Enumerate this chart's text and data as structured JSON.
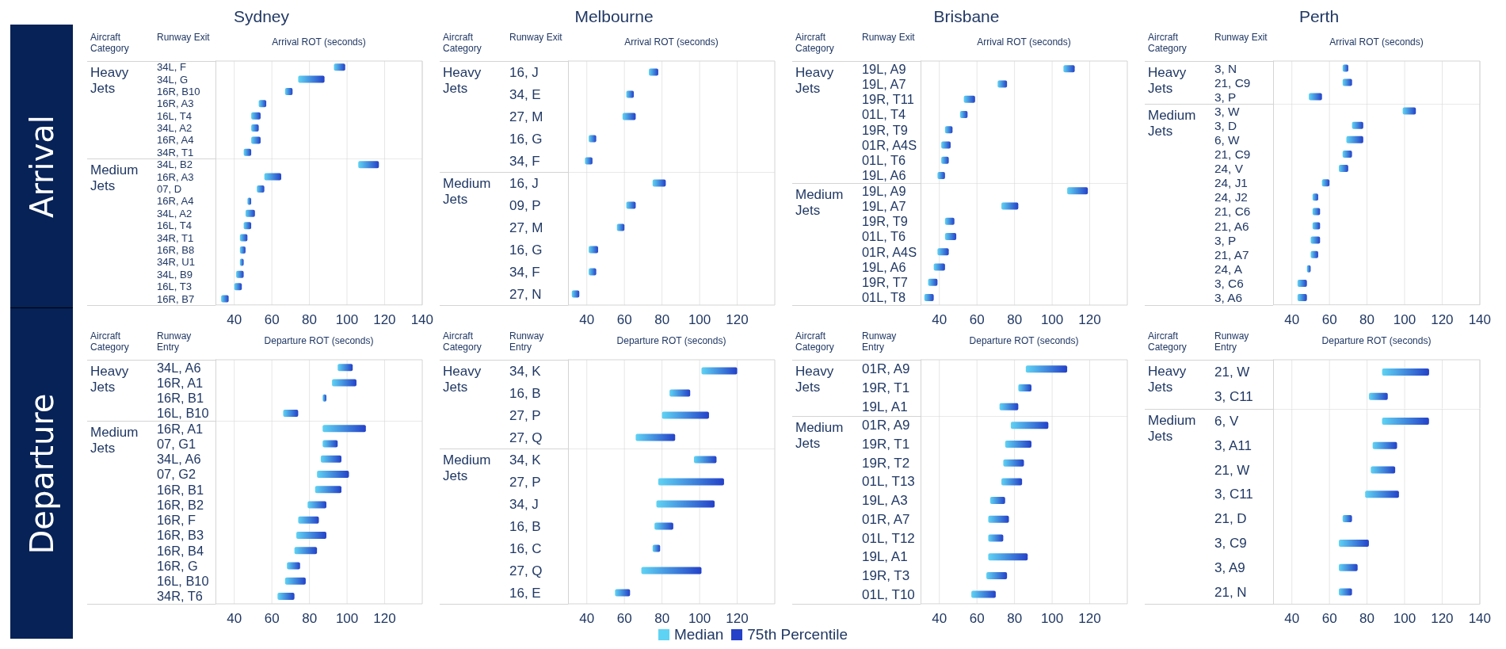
{
  "chart_data": [
    {
      "type": "bar",
      "orientation": "horizontal",
      "title": "Sydney",
      "xlabel": "Arrival ROT (seconds)",
      "ylabel": "Runway Exit",
      "annotations": [
        "Heavy Jets",
        "Aircraft Category",
        "Arrival"
      ],
      "categories": [
        "34L, F",
        "34L, G",
        "16R, B10",
        "16R, A3",
        "16L, T4",
        "34L, A2",
        "16R, A4",
        "34R, T1"
      ],
      "base": [
        93,
        74,
        67,
        53,
        49,
        49,
        49,
        45
      ],
      "values": [
        6,
        14,
        4,
        4,
        5,
        4,
        5,
        4
      ],
      "color": "#2441c8",
      "xlim": [
        30,
        140
      ],
      "xticks": [
        40,
        60,
        80,
        100,
        120,
        140
      ],
      "grid": "x",
      "tick_labels": "y"
    },
    {
      "type": "bar",
      "orientation": "horizontal",
      "annotations": [
        "Medium Jets"
      ],
      "categories": [
        "34L, B2",
        "16R, A3",
        "07, D",
        "16R, A4",
        "34L, A2",
        "16L, T4",
        "34R, T1",
        "16R, B8",
        "34R, U1",
        "34L, B9",
        "16L, T3",
        "16R, B7"
      ],
      "base": [
        106,
        56,
        52,
        47,
        46,
        45,
        43,
        43,
        43,
        41,
        40,
        33
      ],
      "values": [
        11,
        9,
        4,
        2,
        5,
        4,
        4,
        3,
        2,
        4,
        4,
        4
      ],
      "color": "#2441c8",
      "xlim": [
        30,
        140
      ],
      "xticks": [
        40,
        60,
        80,
        100,
        120,
        140
      ],
      "grid": "x"
    },
    {
      "type": "bar",
      "orientation": "horizontal",
      "title": "Melbourne",
      "xlabel": "Arrival ROT (seconds)",
      "ylabel": "Runway Exit",
      "annotations": [
        "Heavy Jets",
        "Aircraft Category"
      ],
      "categories": [
        "16, J",
        "34, E",
        "27, M",
        "16, G",
        "34, F"
      ],
      "base": [
        73,
        61,
        59,
        41,
        39
      ],
      "values": [
        5,
        4,
        7,
        4,
        4
      ],
      "color": "#2441c8",
      "xlim": [
        30,
        140
      ],
      "xticks": [
        40,
        60,
        80,
        100,
        120
      ],
      "grid": "x",
      "tick_labels": "y"
    },
    {
      "type": "bar",
      "orientation": "horizontal",
      "annotations": [
        "Medium Jets"
      ],
      "categories": [
        "16, J",
        "09, P",
        "27, M",
        "16, G",
        "34, F",
        "27, N"
      ],
      "base": [
        75,
        61,
        56,
        41,
        41,
        32
      ],
      "values": [
        7,
        5,
        4,
        5,
        4,
        4
      ],
      "color": "#2441c8",
      "xlim": [
        30,
        140
      ],
      "xticks": [
        40,
        60,
        80,
        100,
        120
      ],
      "grid": "x"
    },
    {
      "type": "bar",
      "orientation": "horizontal",
      "title": "Brisbane",
      "xlabel": "Arrival ROT (seconds)",
      "ylabel": "Runway Exit",
      "annotations": [
        "Heavy Jets",
        "Aircraft Category"
      ],
      "categories": [
        "19L, A9",
        "19L, A7",
        "19R, T11",
        "01L, T4",
        "19R, T9",
        "01R, A4S",
        "01L, T6",
        "19L, A6"
      ],
      "base": [
        106,
        71,
        53,
        51,
        43,
        41,
        41,
        39
      ],
      "values": [
        6,
        5,
        6,
        4,
        4,
        5,
        4,
        4
      ],
      "color": "#2441c8",
      "xlim": [
        30,
        140
      ],
      "xticks": [
        40,
        60,
        80,
        100,
        120
      ],
      "grid": "x",
      "tick_labels": "y"
    },
    {
      "type": "bar",
      "orientation": "horizontal",
      "annotations": [
        "Medium Jets"
      ],
      "categories": [
        "19L, A9",
        "19L, A7",
        "19R, T9",
        "01L, T6",
        "01R, A4S",
        "19L, A6",
        "19R, T7",
        "01L, T8"
      ],
      "base": [
        108,
        73,
        43,
        43,
        39,
        37,
        34,
        32
      ],
      "values": [
        11,
        9,
        5,
        6,
        6,
        6,
        5,
        5
      ],
      "color": "#2441c8",
      "xlim": [
        30,
        140
      ],
      "xticks": [
        40,
        60,
        80,
        100,
        120
      ],
      "grid": "x"
    },
    {
      "type": "bar",
      "orientation": "horizontal",
      "title": "Perth",
      "xlabel": "Arrival ROT (seconds)",
      "ylabel": "Runway Exit",
      "annotations": [
        "Heavy Jets",
        "Aircraft Category"
      ],
      "categories": [
        "3, N",
        "21, C9",
        "3, P"
      ],
      "base": [
        67,
        67,
        49
      ],
      "values": [
        3,
        5,
        7
      ],
      "color": "#2441c8",
      "xlim": [
        30,
        140
      ],
      "xticks": [
        40,
        60,
        80,
        100,
        120,
        140
      ],
      "grid": "x",
      "tick_labels": "y"
    },
    {
      "type": "bar",
      "orientation": "horizontal",
      "annotations": [
        "Medium Jets"
      ],
      "categories": [
        "3, W",
        "3, D",
        "6, W",
        "21, C9",
        "24, V",
        "24, J1",
        "24, J2",
        "21, C6",
        "21, A6",
        "3, P",
        "21, A7",
        "24, A",
        "3, C6",
        "3, A6"
      ],
      "base": [
        99,
        72,
        69,
        67,
        65,
        56,
        51,
        51,
        51,
        50,
        50,
        48,
        43,
        43
      ],
      "values": [
        7,
        6,
        9,
        5,
        5,
        4,
        3,
        4,
        4,
        5,
        4,
        2,
        5,
        5
      ],
      "color": "#2441c8",
      "xlim": [
        30,
        140
      ],
      "xticks": [
        40,
        60,
        80,
        100,
        120,
        140
      ],
      "grid": "x"
    },
    {
      "type": "bar",
      "orientation": "horizontal",
      "xlabel": "Departure ROT (seconds)",
      "ylabel": "Runway Entry",
      "annotations": [
        "Heavy Jets",
        "Aircraft Category",
        "Departure"
      ],
      "categories": [
        "34L, A6",
        "16R, A1",
        "16R, B1",
        "16L, B10"
      ],
      "base": [
        95,
        92,
        87,
        66
      ],
      "values": [
        8,
        13,
        2,
        8
      ],
      "color": "#2441c8",
      "xlim": [
        30,
        140
      ],
      "xticks": [
        40,
        60,
        80,
        100,
        120
      ],
      "grid": "x",
      "tick_labels": "y"
    },
    {
      "type": "bar",
      "orientation": "horizontal",
      "annotations": [
        "Medium Jets"
      ],
      "categories": [
        "16R, A1",
        "07, G1",
        "34L, A6",
        "07, G2",
        "16R, B1",
        "16R, B2",
        "16R, F",
        "16R, B3",
        "16R, B4",
        "16R, G",
        "16L, B10",
        "34R, T6"
      ],
      "base": [
        87,
        87,
        86,
        84,
        83,
        79,
        74,
        73,
        72,
        68,
        67,
        63
      ],
      "values": [
        23,
        8,
        11,
        17,
        14,
        10,
        11,
        16,
        12,
        7,
        11,
        9
      ],
      "color": "#2441c8",
      "xlim": [
        30,
        140
      ],
      "xticks": [
        40,
        60,
        80,
        100,
        120
      ],
      "grid": "x"
    },
    {
      "type": "bar",
      "orientation": "horizontal",
      "xlabel": "Departure ROT (seconds)",
      "ylabel": "Runway Entry",
      "annotations": [
        "Heavy Jets",
        "Aircraft Category"
      ],
      "categories": [
        "34, K",
        "16, B",
        "27, P",
        "27, Q"
      ],
      "base": [
        101,
        84,
        80,
        66
      ],
      "values": [
        19,
        11,
        25,
        21
      ],
      "color": "#2441c8",
      "xlim": [
        30,
        140
      ],
      "xticks": [
        40,
        60,
        80,
        100,
        120
      ],
      "grid": "x",
      "tick_labels": "y"
    },
    {
      "type": "bar",
      "orientation": "horizontal",
      "annotations": [
        "Medium Jets"
      ],
      "categories": [
        "34, K",
        "27, P",
        "34, J",
        "16, B",
        "16, C",
        "27, Q",
        "16, E"
      ],
      "base": [
        97,
        78,
        77,
        76,
        75,
        69,
        55
      ],
      "values": [
        12,
        35,
        31,
        10,
        4,
        32,
        8
      ],
      "color": "#2441c8",
      "xlim": [
        30,
        140
      ],
      "xticks": [
        40,
        60,
        80,
        100,
        120
      ],
      "grid": "x"
    },
    {
      "type": "bar",
      "orientation": "horizontal",
      "xlabel": "Departure ROT (seconds)",
      "ylabel": "Runway Entry",
      "annotations": [
        "Heavy Jets",
        "Aircraft Category"
      ],
      "categories": [
        "01R, A9",
        "19R, T1",
        "19L, A1"
      ],
      "base": [
        86,
        82,
        72
      ],
      "values": [
        22,
        7,
        10
      ],
      "color": "#2441c8",
      "xlim": [
        30,
        140
      ],
      "xticks": [
        40,
        60,
        80,
        100,
        120
      ],
      "grid": "x",
      "tick_labels": "y"
    },
    {
      "type": "bar",
      "orientation": "horizontal",
      "annotations": [
        "Medium Jets"
      ],
      "categories": [
        "01R, A9",
        "19R, T1",
        "19R, T2",
        "01L, T13",
        "19L, A3",
        "01R, A7",
        "01L, T12",
        "19L, A1",
        "19R, T3",
        "01L, T10"
      ],
      "base": [
        78,
        75,
        74,
        73,
        67,
        66,
        66,
        66,
        65,
        57
      ],
      "values": [
        20,
        14,
        11,
        11,
        8,
        11,
        8,
        21,
        11,
        13
      ],
      "color": "#2441c8",
      "xlim": [
        30,
        140
      ],
      "xticks": [
        40,
        60,
        80,
        100,
        120
      ],
      "grid": "x"
    },
    {
      "type": "bar",
      "orientation": "horizontal",
      "xlabel": "Departure ROT (seconds)",
      "ylabel": "Runway Entry",
      "annotations": [
        "Heavy Jets",
        "Aircraft Category"
      ],
      "categories": [
        "21, W",
        "3, C11"
      ],
      "base": [
        88,
        81
      ],
      "values": [
        25,
        10
      ],
      "color": "#2441c8",
      "xlim": [
        30,
        140
      ],
      "xticks": [
        40,
        60,
        80,
        100,
        120,
        140
      ],
      "grid": "x",
      "tick_labels": "y"
    },
    {
      "type": "bar",
      "orientation": "horizontal",
      "annotations": [
        "Medium Jets",
        "Median",
        "75th Percentile"
      ],
      "categories": [
        "6, V",
        "3, A11",
        "21, W",
        "3, C11",
        "21, D",
        "3, C9",
        "3, A9",
        "21, N"
      ],
      "base": [
        88,
        83,
        82,
        79,
        67,
        65,
        65,
        65
      ],
      "values": [
        25,
        13,
        13,
        18,
        5,
        16,
        10,
        7
      ],
      "color": "#2441c8",
      "xlim": [
        30,
        140
      ],
      "xticks": [
        40,
        60,
        80,
        100,
        120,
        140
      ],
      "grid": "x"
    }
  ]
}
